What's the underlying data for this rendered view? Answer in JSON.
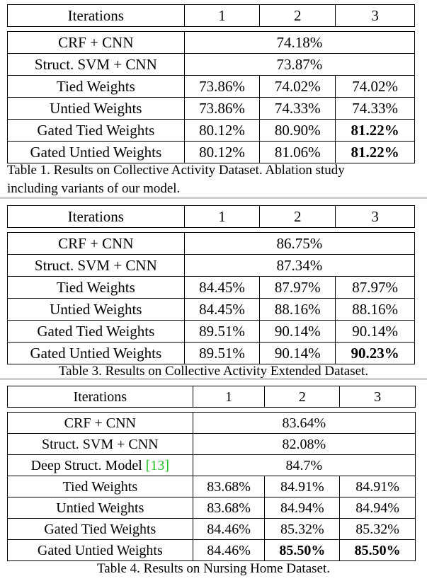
{
  "table1": {
    "header": [
      "Iterations",
      "1",
      "2",
      "3"
    ],
    "span_rows": [
      {
        "label": "CRF + CNN",
        "value": "74.18%"
      },
      {
        "label": "Struct. SVM + CNN",
        "value": "73.87%"
      }
    ],
    "rows": [
      {
        "label": "Tied Weights",
        "cells": [
          "73.86%",
          "74.02%",
          "74.02%"
        ]
      },
      {
        "label": "Untied Weights",
        "cells": [
          "73.86%",
          "74.33%",
          "74.33%"
        ]
      },
      {
        "label": "Gated Tied Weights",
        "cells": [
          "80.12%",
          "80.90%",
          "81.22%"
        ]
      },
      {
        "label": "Gated Untied Weights",
        "cells": [
          "80.12%",
          "81.06%",
          "81.22%"
        ]
      }
    ],
    "caption_line1": "Table 1. Results on Collective Activity Dataset.  Ablation study",
    "caption_line2": "including variants of our model."
  },
  "table3": {
    "header": [
      "Iterations",
      "1",
      "2",
      "3"
    ],
    "span_rows": [
      {
        "label": "CRF + CNN",
        "value": "86.75%"
      },
      {
        "label": "Struct. SVM + CNN",
        "value": "87.34%"
      }
    ],
    "rows": [
      {
        "label": "Tied Weights",
        "cells": [
          "84.45%",
          "87.97%",
          "87.97%"
        ]
      },
      {
        "label": "Untied Weights",
        "cells": [
          "84.45%",
          "88.16%",
          "88.16%"
        ]
      },
      {
        "label": "Gated Tied Weights",
        "cells": [
          "89.51%",
          "90.14%",
          "90.14%"
        ]
      },
      {
        "label": "Gated Untied Weights",
        "cells": [
          "89.51%",
          "90.14%",
          "90.23%"
        ]
      }
    ],
    "caption": "Table 3. Results on Collective Activity Extended Dataset."
  },
  "table4": {
    "header": [
      "Iterations",
      "1",
      "2",
      "3"
    ],
    "span_rows": [
      {
        "label": "CRF + CNN",
        "value": "83.64%"
      },
      {
        "label": "Struct. SVM + CNN",
        "value": "82.08%"
      },
      {
        "label": "Deep Struct. Model ",
        "cite": "[13]",
        "value": "84.7%"
      }
    ],
    "rows": [
      {
        "label": "Tied Weights",
        "cells": [
          "83.68%",
          "84.91%",
          "84.91%"
        ]
      },
      {
        "label": "Untied Weights",
        "cells": [
          "83.68%",
          "84.94%",
          "84.94%"
        ]
      },
      {
        "label": "Gated Tied Weights",
        "cells": [
          "84.46%",
          "85.32%",
          "85.32%"
        ]
      },
      {
        "label": "Gated Untied Weights",
        "cells": [
          "84.46%",
          "85.50%",
          "85.50%"
        ]
      }
    ],
    "caption": "Table 4. Results on Nursing Home Dataset."
  }
}
